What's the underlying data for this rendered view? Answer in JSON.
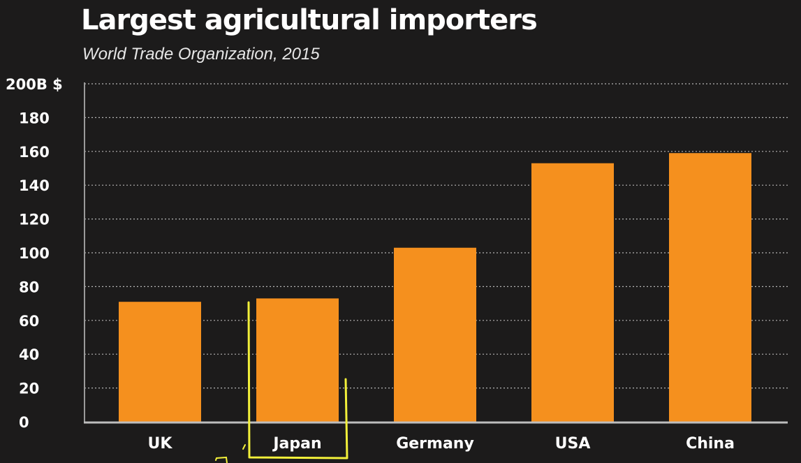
{
  "chart_data": {
    "type": "bar",
    "title": "Largest agricultural importers",
    "subtitle": "World Trade Organization, 2015",
    "categories": [
      "UK",
      "Japan",
      "Germany",
      "USA",
      "China"
    ],
    "values": [
      71,
      73,
      103,
      153,
      159
    ],
    "ylim": [
      0,
      200
    ],
    "yticks": [
      0,
      20,
      40,
      60,
      80,
      100,
      120,
      140,
      160,
      180,
      200
    ],
    "ytick_labels": [
      "0",
      "20",
      "40",
      "60",
      "80",
      "100",
      "120",
      "140",
      "160",
      "180",
      "200B $"
    ],
    "xlabel": "",
    "ylabel": "",
    "grid": true,
    "bar_color": "#f5901e",
    "grid_color": "#b5b5b5",
    "background": "#1c1b1b",
    "annotation_color": "#f2f03a"
  }
}
